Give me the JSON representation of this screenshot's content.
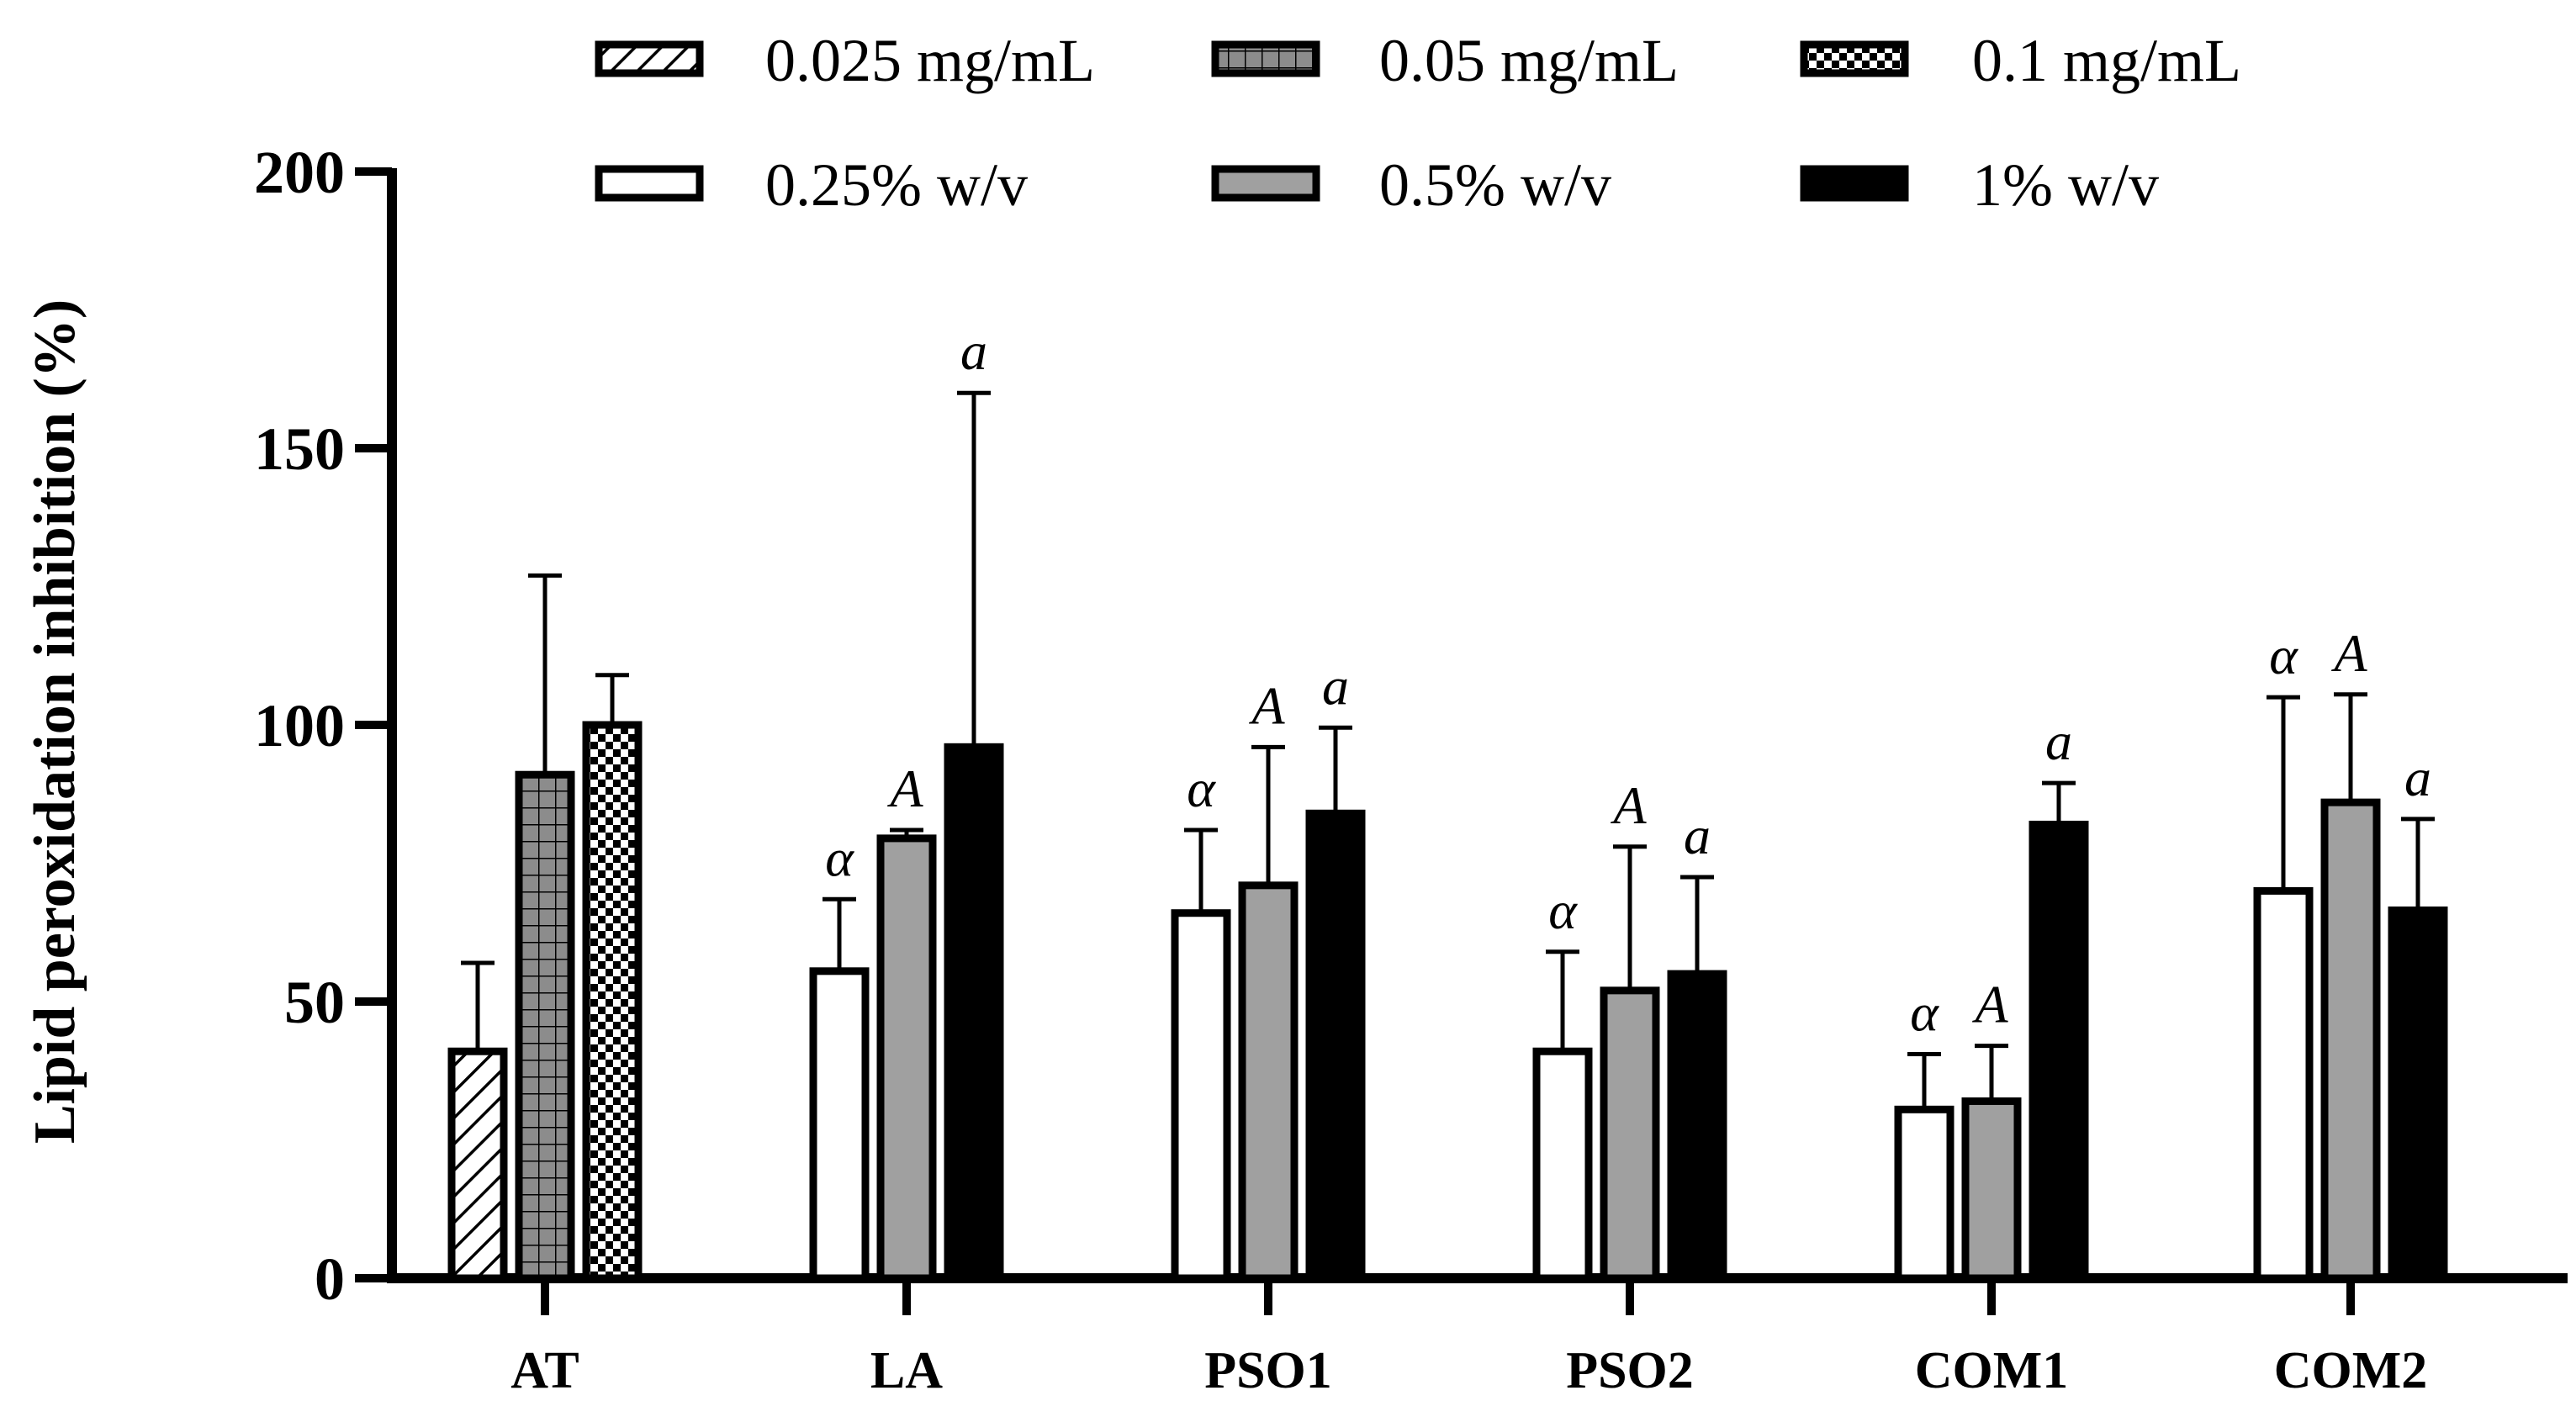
{
  "chart_data": {
    "type": "bar",
    "ylabel": "Lipid peroxidation inhibition (%)",
    "xlabel": "",
    "ylim": [
      0,
      200
    ],
    "yticks": [
      0,
      50,
      100,
      150,
      200
    ],
    "legend_position": "top",
    "legend": [
      {
        "name": "0.025 mg/mL",
        "style": "hatch",
        "color": "#ffffff"
      },
      {
        "name": "0.05 mg/mL",
        "style": "grid",
        "color": "#8c8c8c"
      },
      {
        "name": "0.1 mg/mL",
        "style": "checker",
        "color": "#ffffff"
      },
      {
        "name": "0.25% w/v",
        "style": "solid",
        "color": "#ffffff"
      },
      {
        "name": "0.5% w/v",
        "style": "solid",
        "color": "#a0a0a0"
      },
      {
        "name": "1% w/v",
        "style": "solid",
        "color": "#000000"
      }
    ],
    "categories": [
      {
        "name": "AT",
        "bars": [
          {
            "series": 0,
            "value": 41,
            "error": 16,
            "sig": ""
          },
          {
            "series": 1,
            "value": 91,
            "error": 36,
            "sig": ""
          },
          {
            "series": 2,
            "value": 100,
            "error": 9,
            "sig": ""
          }
        ]
      },
      {
        "name": "LA",
        "bars": [
          {
            "series": 3,
            "value": 55.5,
            "error": 13,
            "sig": "α"
          },
          {
            "series": 4,
            "value": 79.5,
            "error": 1.5,
            "sig": "A"
          },
          {
            "series": 5,
            "value": 96,
            "error": 64,
            "sig": "a"
          }
        ]
      },
      {
        "name": "PSO1",
        "bars": [
          {
            "series": 3,
            "value": 66,
            "error": 15,
            "sig": "α"
          },
          {
            "series": 4,
            "value": 71,
            "error": 25,
            "sig": "A"
          },
          {
            "series": 5,
            "value": 84,
            "error": 15.5,
            "sig": "a"
          }
        ]
      },
      {
        "name": "PSO2",
        "bars": [
          {
            "series": 3,
            "value": 41,
            "error": 18,
            "sig": "α"
          },
          {
            "series": 4,
            "value": 52,
            "error": 26,
            "sig": "A"
          },
          {
            "series": 5,
            "value": 55,
            "error": 17.5,
            "sig": "a"
          }
        ]
      },
      {
        "name": "COM1",
        "bars": [
          {
            "series": 3,
            "value": 30.5,
            "error": 10,
            "sig": "α"
          },
          {
            "series": 4,
            "value": 32,
            "error": 10,
            "sig": "A"
          },
          {
            "series": 5,
            "value": 82,
            "error": 7.5,
            "sig": "a"
          }
        ]
      },
      {
        "name": "COM2",
        "bars": [
          {
            "series": 3,
            "value": 70,
            "error": 35,
            "sig": "α"
          },
          {
            "series": 4,
            "value": 86,
            "error": 19.5,
            "sig": "A"
          },
          {
            "series": 5,
            "value": 66.5,
            "error": 16.5,
            "sig": "a"
          }
        ]
      }
    ]
  }
}
